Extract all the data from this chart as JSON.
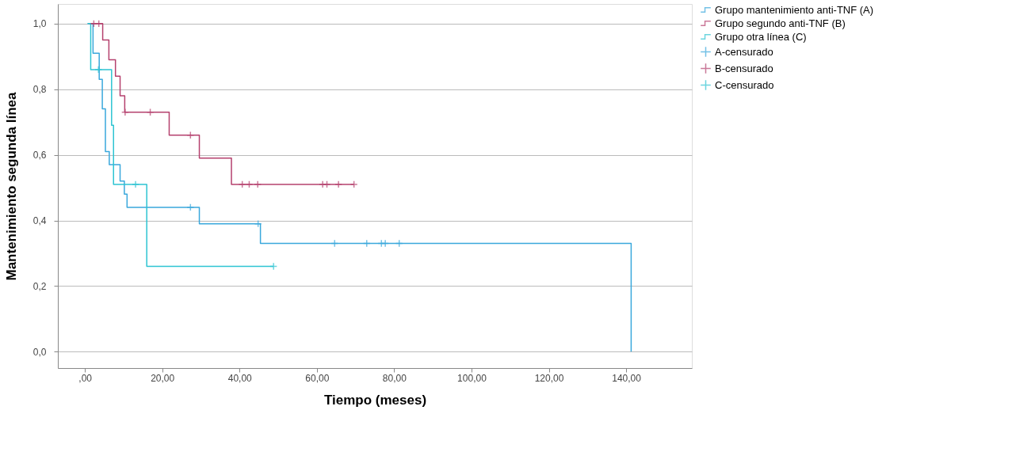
{
  "chart_data": {
    "type": "step",
    "xlabel": "Tiempo (meses)",
    "ylabel": "Mantenimiento segunda línea",
    "xlim": [
      -7,
      157
    ],
    "ylim": [
      -0.05,
      1.06
    ],
    "xticks": [
      {
        "value": 0,
        "label": ",00"
      },
      {
        "value": 20,
        "label": "20,00"
      },
      {
        "value": 40,
        "label": "40,00"
      },
      {
        "value": 60,
        "label": "60,00"
      },
      {
        "value": 80,
        "label": "80,00"
      },
      {
        "value": 100,
        "label": "100,00"
      },
      {
        "value": 120,
        "label": "120,00"
      },
      {
        "value": 140,
        "label": "140,00"
      }
    ],
    "yticks": [
      {
        "value": 0,
        "label": "0,0"
      },
      {
        "value": 0.2,
        "label": "0,2"
      },
      {
        "value": 0.4,
        "label": "0,4"
      },
      {
        "value": 0.6,
        "label": "0,6"
      },
      {
        "value": 0.8,
        "label": "0,8"
      },
      {
        "value": 1,
        "label": "1,0"
      }
    ],
    "grid": "y",
    "legend": "top right",
    "line_style": "solid",
    "series": [
      {
        "name": "Grupo mantenimiento anti-TNF (A)",
        "color": "#3aa8dc",
        "x": [
          0.7,
          2.1,
          3.7,
          4.5,
          5.3,
          6.3,
          9.1,
          10.2,
          10.9,
          29.6,
          45.4,
          141.3
        ],
        "values": [
          1.0,
          0.91,
          0.83,
          0.74,
          0.61,
          0.57,
          0.52,
          0.48,
          0.44,
          0.39,
          0.33,
          0.0
        ]
      },
      {
        "name": "Grupo segundo anti-TNF (B)",
        "color": "#b5416e",
        "x": [
          1.0,
          4.6,
          6.2,
          7.9,
          9.1,
          10.3,
          21.8,
          29.6,
          37.9,
          69.6
        ],
        "values": [
          1.0,
          0.95,
          0.89,
          0.84,
          0.78,
          0.73,
          0.66,
          0.59,
          0.51,
          0.51
        ]
      },
      {
        "name": "Grupo otra línea (C)",
        "color": "#2ec4d2",
        "x": [
          0.7,
          1.5,
          6.9,
          7.4,
          16.0,
          48.8
        ],
        "values": [
          1.0,
          0.86,
          0.69,
          0.51,
          0.26,
          0.26
        ]
      },
      {
        "name": "A-censurado",
        "type": "scatter",
        "marker": "cross",
        "color": "#3aa8dc",
        "x": [
          27.3,
          44.8,
          64.6,
          72.9,
          76.7,
          77.7,
          81.3
        ],
        "values": [
          0.44,
          0.39,
          0.33,
          0.33,
          0.33,
          0.33,
          0.33
        ]
      },
      {
        "name": "B-censurado",
        "type": "scatter",
        "marker": "cross",
        "color": "#b5416e",
        "x": [
          2.3,
          3.6,
          10.4,
          16.9,
          27.3,
          40.7,
          42.5,
          44.7,
          61.5,
          62.6,
          65.6,
          69.6
        ],
        "values": [
          1.0,
          1.0,
          0.73,
          0.73,
          0.66,
          0.51,
          0.51,
          0.51,
          0.51,
          0.51,
          0.51,
          0.51
        ]
      },
      {
        "name": "C-censurado",
        "type": "scatter",
        "marker": "cross",
        "color": "#2ec4d2",
        "x": [
          3.5,
          13.1,
          48.8
        ],
        "values": [
          0.86,
          0.51,
          0.26
        ]
      }
    ]
  }
}
